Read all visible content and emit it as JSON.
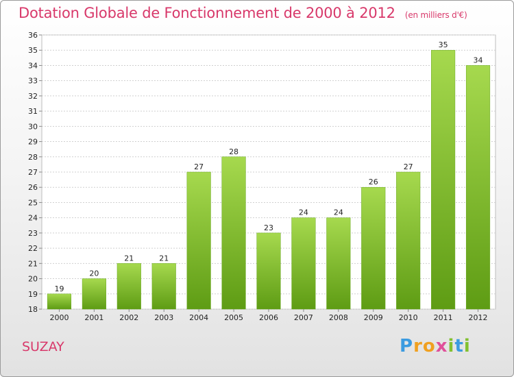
{
  "chart_data": {
    "type": "bar",
    "title": "Dotation Globale de Fonctionnement de 2000 à 2012",
    "subtitle": "(en milliers d'€)",
    "categories": [
      "2000",
      "2001",
      "2002",
      "2003",
      "2004",
      "2005",
      "2006",
      "2007",
      "2008",
      "2009",
      "2010",
      "2011",
      "2012"
    ],
    "values": [
      19,
      20,
      21,
      21,
      27,
      28,
      23,
      24,
      24,
      26,
      27,
      35,
      34
    ],
    "ylim": [
      18,
      36
    ],
    "yticks": [
      18,
      19,
      20,
      21,
      22,
      23,
      24,
      25,
      26,
      27,
      28,
      29,
      30,
      31,
      32,
      33,
      34,
      35,
      36
    ],
    "grid": true,
    "bar_color": "#7cc030"
  },
  "footer": {
    "commune": "SUZAY",
    "logo_text": "Proxiti"
  }
}
